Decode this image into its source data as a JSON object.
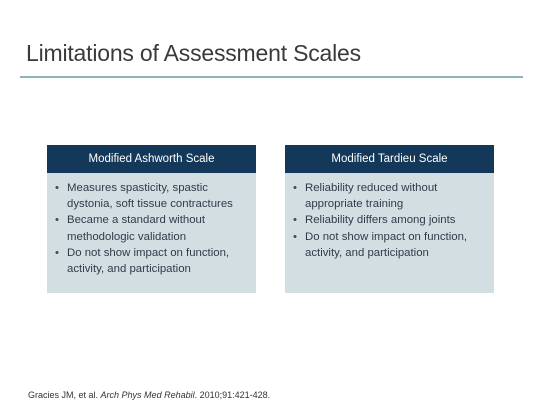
{
  "slide": {
    "title": "Limitations of Assessment Scales"
  },
  "cards": [
    {
      "header": "Modified Ashworth Scale",
      "items": [
        "Measures spasticity, spastic dystonia, soft tissue contractures",
        "Became a standard without methodologic validation",
        "Do not show impact on function, activity, and participation"
      ]
    },
    {
      "header": "Modified Tardieu Scale",
      "items": [
        "Reliability reduced without appropriate training",
        "Reliability differs among joints",
        "Do not show impact on function, activity, and participation"
      ]
    }
  ],
  "citation": {
    "authors": "Gracies JM, et al.",
    "journal": "Arch Phys Med Rehabil",
    "details": ". 2010;91:421-428."
  },
  "colors": {
    "header_bg": "#13385a",
    "card_bg": "#d3dee3",
    "rule": "#8fb3bd"
  }
}
